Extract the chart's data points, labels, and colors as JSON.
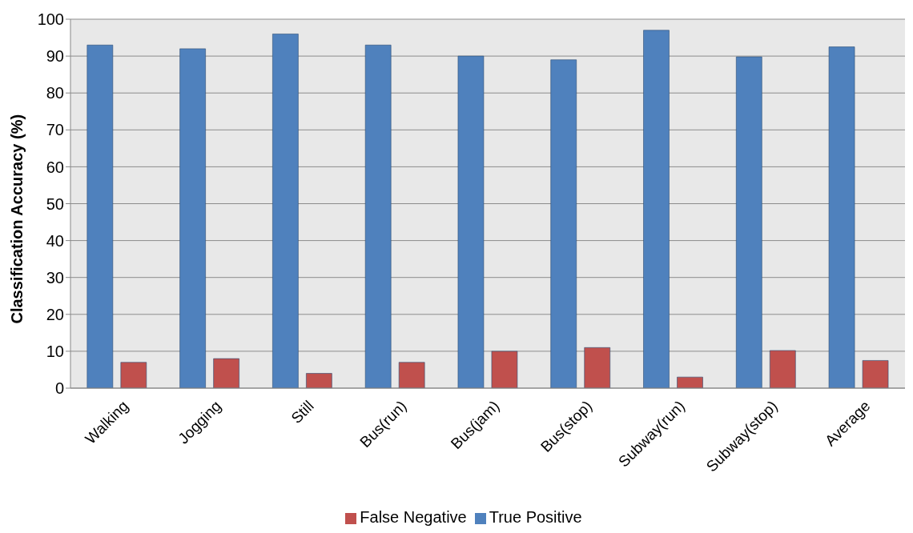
{
  "chart_data": {
    "type": "bar",
    "ylabel": "Classification Accuracy (%)",
    "categories": [
      "Walking",
      "Jogging",
      "Still",
      "Bus(run)",
      "Bus(jam)",
      "Bus(stop)",
      "Subway(run)",
      "Subway(stop)",
      "Average"
    ],
    "series": [
      {
        "name": "True Positive",
        "color": "#4f81bd",
        "values": [
          93,
          92,
          96,
          93,
          90,
          89,
          97,
          89.8,
          92.5
        ]
      },
      {
        "name": "False Negative",
        "color": "#c0504d",
        "values": [
          7,
          8,
          4,
          7,
          10,
          11,
          3,
          10.2,
          7.5
        ]
      }
    ],
    "ylim": [
      0,
      100
    ],
    "yticks": [
      0,
      10,
      20,
      30,
      40,
      50,
      60,
      70,
      80,
      90,
      100
    ],
    "grid": "y",
    "legend": "bottom"
  }
}
